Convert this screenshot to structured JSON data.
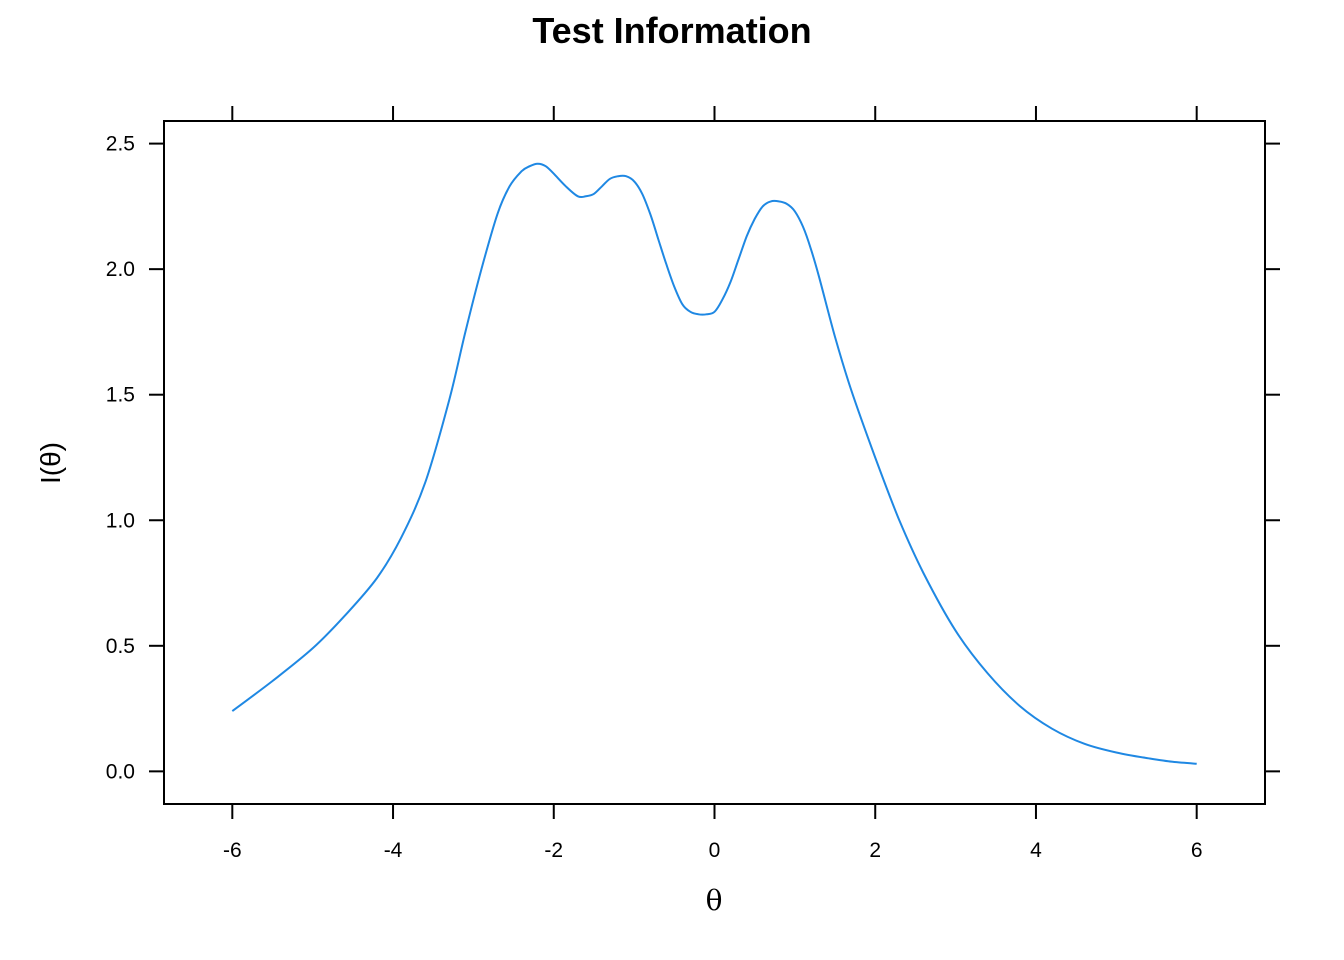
{
  "chart_data": {
    "type": "line",
    "title": "Test Information",
    "xlabel": "θ",
    "ylabel": "I(θ)",
    "xlim": [
      -6.85,
      6.85
    ],
    "ylim": [
      -0.13,
      2.59
    ],
    "x_ticks": [
      -6,
      -4,
      -2,
      0,
      2,
      4,
      6
    ],
    "x_tick_labels": [
      "-6",
      "-4",
      "-2",
      "0",
      "2",
      "4",
      "6"
    ],
    "y_ticks": [
      0.0,
      0.5,
      1.0,
      1.5,
      2.0,
      2.5
    ],
    "y_tick_labels": [
      "0.0",
      "0.5",
      "1.0",
      "1.5",
      "2.0",
      "2.5"
    ],
    "line_color": "#1f88e3",
    "grid": false,
    "series": [
      {
        "x": [
          -6.0,
          -5.5,
          -5.0,
          -4.6,
          -4.2,
          -3.9,
          -3.6,
          -3.3,
          -3.1,
          -2.9,
          -2.7,
          -2.55,
          -2.4,
          -2.3,
          -2.2,
          -2.1,
          -2.0,
          -1.85,
          -1.7,
          -1.6,
          -1.5,
          -1.4,
          -1.3,
          -1.2,
          -1.1,
          -1.0,
          -0.9,
          -0.8,
          -0.7,
          -0.6,
          -0.5,
          -0.4,
          -0.3,
          -0.2,
          -0.1,
          0.0,
          0.1,
          0.2,
          0.3,
          0.4,
          0.5,
          0.6,
          0.7,
          0.8,
          0.9,
          1.0,
          1.1,
          1.2,
          1.3,
          1.5,
          1.7,
          2.0,
          2.3,
          2.6,
          3.0,
          3.4,
          3.8,
          4.2,
          4.6,
          5.0,
          5.4,
          5.7,
          6.0
        ],
        "y": [
          0.24,
          0.36,
          0.49,
          0.62,
          0.77,
          0.93,
          1.15,
          1.48,
          1.75,
          2.0,
          2.22,
          2.33,
          2.39,
          2.41,
          2.42,
          2.41,
          2.38,
          2.33,
          2.29,
          2.29,
          2.3,
          2.33,
          2.36,
          2.37,
          2.37,
          2.35,
          2.3,
          2.22,
          2.12,
          2.02,
          1.93,
          1.86,
          1.83,
          1.82,
          1.82,
          1.83,
          1.88,
          1.95,
          2.04,
          2.13,
          2.2,
          2.25,
          2.27,
          2.27,
          2.26,
          2.23,
          2.17,
          2.08,
          1.97,
          1.73,
          1.52,
          1.25,
          1.0,
          0.79,
          0.56,
          0.39,
          0.26,
          0.17,
          0.11,
          0.075,
          0.052,
          0.038,
          0.03
        ]
      }
    ]
  }
}
